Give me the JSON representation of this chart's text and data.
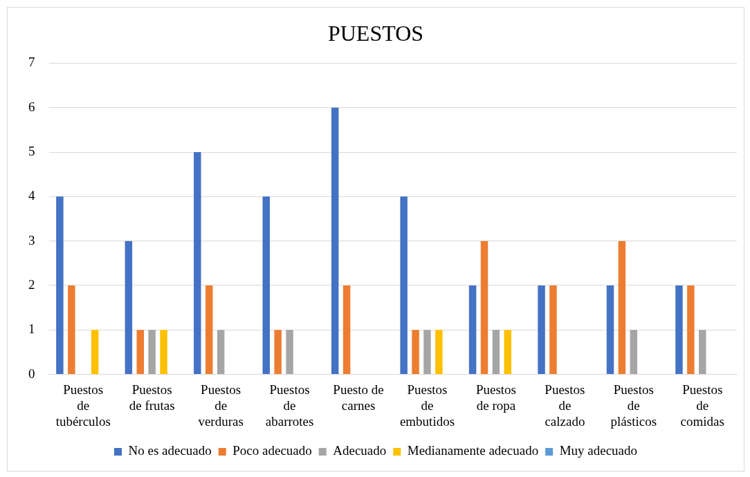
{
  "chart_data": {
    "type": "bar",
    "title": "PUESTOS",
    "categories": [
      "Puestos de tubérculos",
      "Puestos de frutas",
      "Puestos de verduras",
      "Puestos de abarrotes",
      "Puesto de carnes",
      "Puestos de embutidos",
      "Puestos de ropa",
      "Puestos de calzado",
      "Puestos de plásticos",
      "Puestos de comidas"
    ],
    "series": [
      {
        "name": "No es adecuado",
        "color": "#4472c4",
        "values": [
          4,
          3,
          5,
          4,
          6,
          4,
          2,
          2,
          2,
          2
        ]
      },
      {
        "name": "Poco adecuado",
        "color": "#ed7d31",
        "values": [
          2,
          1,
          2,
          1,
          2,
          1,
          3,
          2,
          3,
          2
        ]
      },
      {
        "name": "Adecuado",
        "color": "#a5a5a5",
        "values": [
          0,
          1,
          1,
          1,
          0,
          1,
          1,
          0,
          1,
          1
        ]
      },
      {
        "name": "Medianamente adecuado",
        "color": "#ffc000",
        "values": [
          1,
          1,
          0,
          0,
          0,
          1,
          1,
          0,
          0,
          0
        ]
      },
      {
        "name": "Muy adecuado",
        "color": "#5b9bd5",
        "values": [
          0,
          0,
          0,
          0,
          0,
          0,
          0,
          0,
          0,
          0
        ]
      }
    ],
    "ylim": [
      0,
      7
    ],
    "yticks": [
      0,
      1,
      2,
      3,
      4,
      5,
      6,
      7
    ],
    "grid": "y",
    "legend": "bottom"
  }
}
